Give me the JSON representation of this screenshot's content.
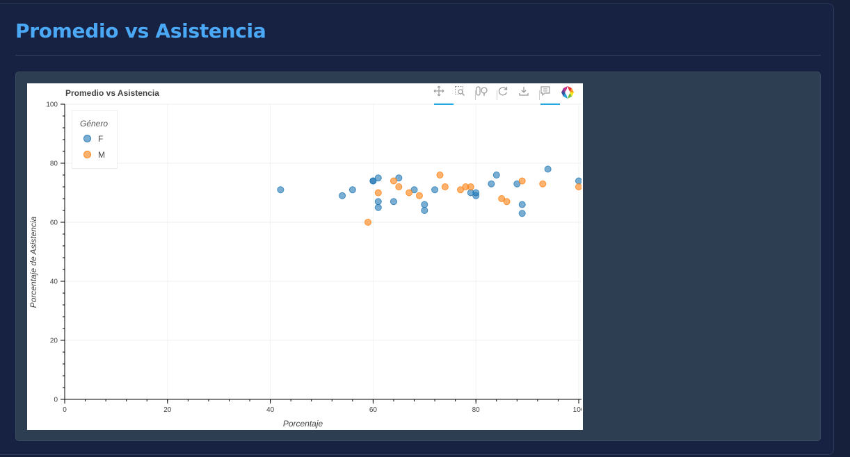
{
  "page": {
    "title": "Promedio vs Asistencia"
  },
  "toolbar": {
    "tools": [
      "pan-icon",
      "box-zoom-icon",
      "wheel-zoom-icon",
      "reset-icon",
      "save-icon",
      "hover-icon",
      "bokeh-logo-icon"
    ]
  },
  "chart_data": {
    "type": "scatter",
    "title": "Promedio vs Asistencia",
    "xlabel": "Porcentaje",
    "ylabel": "Porcentaje de Asistencia",
    "xlim": [
      0,
      100
    ],
    "ylim": [
      0,
      100
    ],
    "xticks": [
      0,
      20,
      40,
      60,
      80,
      100
    ],
    "yticks": [
      0,
      20,
      40,
      60,
      80,
      100
    ],
    "grid": true,
    "legend": {
      "title": "Género",
      "placement": "top-left"
    },
    "series": [
      {
        "name": "F",
        "color": "#1f77b4",
        "points": [
          [
            42,
            71
          ],
          [
            54,
            69
          ],
          [
            56,
            71
          ],
          [
            60,
            74
          ],
          [
            60,
            74
          ],
          [
            61,
            75
          ],
          [
            61,
            67
          ],
          [
            61,
            65
          ],
          [
            64,
            67
          ],
          [
            65,
            75
          ],
          [
            68,
            71
          ],
          [
            70,
            66
          ],
          [
            70,
            64
          ],
          [
            72,
            71
          ],
          [
            79,
            70
          ],
          [
            80,
            70
          ],
          [
            80,
            69
          ],
          [
            83,
            73
          ],
          [
            84,
            76
          ],
          [
            88,
            73
          ],
          [
            89,
            66
          ],
          [
            89,
            63
          ],
          [
            94,
            78
          ],
          [
            100,
            74
          ]
        ]
      },
      {
        "name": "M",
        "color": "#ff7f0e",
        "points": [
          [
            59,
            60
          ],
          [
            61,
            70
          ],
          [
            64,
            74
          ],
          [
            65,
            72
          ],
          [
            67,
            70
          ],
          [
            69,
            69
          ],
          [
            73,
            76
          ],
          [
            74,
            72
          ],
          [
            77,
            71
          ],
          [
            78,
            72
          ],
          [
            79,
            72
          ],
          [
            85,
            68
          ],
          [
            86,
            67
          ],
          [
            89,
            74
          ],
          [
            93,
            73
          ],
          [
            100,
            72
          ]
        ]
      }
    ]
  }
}
